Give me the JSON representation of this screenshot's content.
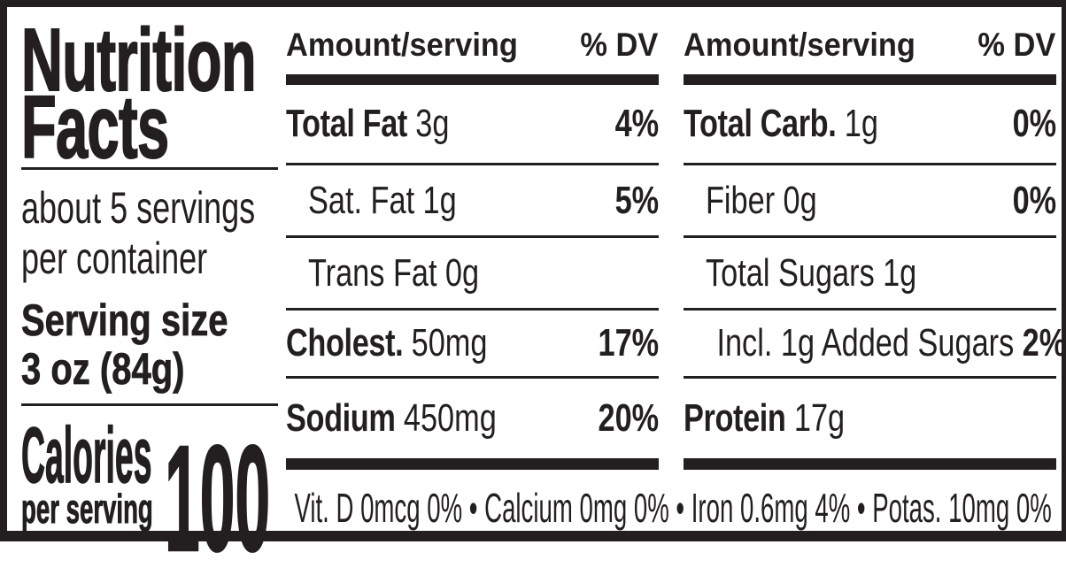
{
  "colors": {
    "ink": "#231f20",
    "background": "#ffffff"
  },
  "label": {
    "title": {
      "line1": "Nutrition",
      "line2": "Facts"
    },
    "servings": {
      "line1": "about 5 servings",
      "line2": "per container"
    },
    "serving_size": {
      "label": "Serving size",
      "value": "3 oz (84g)"
    },
    "calories": {
      "label": "Calories",
      "sublabel": "per serving",
      "value": "100"
    },
    "columns": [
      {
        "header": {
          "amount": "Amount/serving",
          "dv": "% DV"
        },
        "rows": [
          {
            "name": "Total Fat",
            "amount": "3g",
            "dv": "4%"
          },
          {
            "name": "Sat. Fat",
            "amount": "1g",
            "dv": "5%"
          },
          {
            "name": "Trans Fat",
            "amount": "0g",
            "dv": ""
          },
          {
            "name": "Cholest.",
            "amount": "50mg",
            "dv": "17%"
          },
          {
            "name": "Sodium",
            "amount": "450mg",
            "dv": "20%"
          }
        ]
      },
      {
        "header": {
          "amount": "Amount/serving",
          "dv": "% DV"
        },
        "rows": [
          {
            "name": "Total Carb.",
            "amount": "1g",
            "dv": "0%"
          },
          {
            "name": "Fiber",
            "amount": "0g",
            "dv": "0%"
          },
          {
            "name": "Total Sugars",
            "amount": "1g",
            "dv": ""
          },
          {
            "name": "Incl. 1g Added Sugars",
            "amount": "",
            "dv": "2%"
          },
          {
            "name": "Protein",
            "amount": "17g",
            "dv": ""
          }
        ]
      }
    ],
    "footnote": "Vit. D 0mcg 0% • Calcium 0mg 0% • Iron 0.6mg 4% • Potas. 10mg 0%"
  }
}
